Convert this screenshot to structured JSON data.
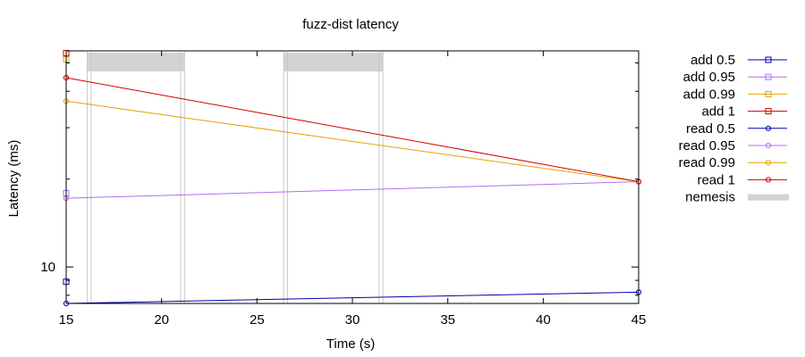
{
  "chart_data": {
    "type": "line",
    "title": "fuzz-dist latency",
    "xlabel": "Time (s)",
    "ylabel": "Latency (ms)",
    "xlim": [
      15,
      45
    ],
    "ylim": [
      7.5,
      55
    ],
    "yscale": "log",
    "xticks": [
      15,
      20,
      25,
      30,
      35,
      40,
      45
    ],
    "yticks": [
      10
    ],
    "grid": false,
    "legend_position": "right",
    "series": [
      {
        "name": "add 0.5",
        "color": "#0000b0",
        "marker": "square",
        "points": [
          [
            15,
            8.9
          ]
        ]
      },
      {
        "name": "add 0.95",
        "color": "#b070f0",
        "marker": "square",
        "points": [
          [
            15,
            17.9
          ]
        ]
      },
      {
        "name": "add 0.99",
        "color": "#e8a000",
        "marker": "square",
        "points": [
          [
            15,
            51.5
          ]
        ]
      },
      {
        "name": "add 1",
        "color": "#d00000",
        "marker": "square",
        "points": [
          [
            15,
            54.0
          ]
        ]
      },
      {
        "name": "read 0.5",
        "color": "#0000b0",
        "marker": "circle",
        "points": [
          [
            15,
            7.5
          ],
          [
            45,
            8.2
          ]
        ]
      },
      {
        "name": "read 0.95",
        "color": "#b070f0",
        "marker": "circle",
        "points": [
          [
            15,
            17.2
          ],
          [
            45,
            19.6
          ]
        ]
      },
      {
        "name": "read 0.99",
        "color": "#e8a000",
        "marker": "circle",
        "points": [
          [
            15,
            37.0
          ],
          [
            45,
            19.6
          ]
        ]
      },
      {
        "name": "read 1",
        "color": "#d00000",
        "marker": "circle",
        "points": [
          [
            15,
            44.5
          ],
          [
            45,
            19.6
          ]
        ]
      }
    ],
    "nemesis": {
      "name": "nemesis",
      "color": "#d3d3d3",
      "intervals": [
        [
          16.1,
          21.2
        ],
        [
          26.4,
          31.6
        ]
      ],
      "markers": [
        16.1,
        16.3,
        21.0,
        21.2,
        26.4,
        26.6,
        31.4,
        31.6
      ]
    }
  }
}
